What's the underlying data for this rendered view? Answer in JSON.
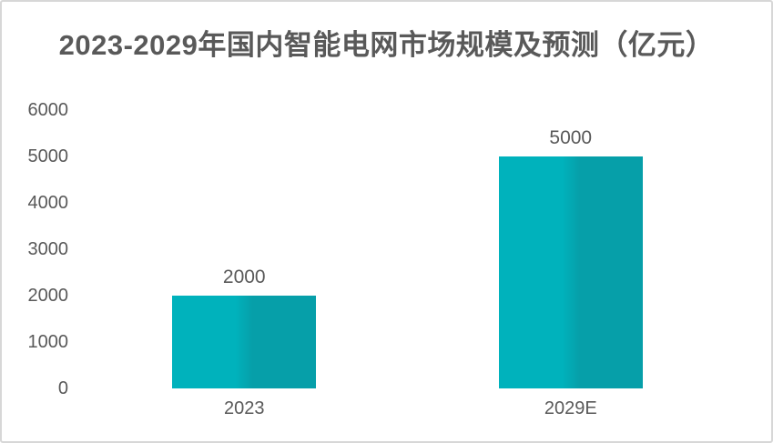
{
  "title": "2023-2029年国内智能电网市场规模及预测（亿元）",
  "colors": {
    "title_text": "#595959",
    "axis_text": "#595959",
    "bar_left": "#00b2bc",
    "bar_right": "#069fa9",
    "card_border": "#d7d7d7",
    "background": "#ffffff"
  },
  "chart_data": {
    "type": "bar",
    "title": "2023-2029年国内智能电网市场规模及预测（亿元）",
    "unit": "亿元",
    "categories": [
      "2023",
      "2029E"
    ],
    "values": [
      2000,
      5000
    ],
    "data_labels": [
      "2000",
      "5000"
    ],
    "xlabel": "",
    "ylabel": "",
    "ylim": [
      0,
      6000
    ],
    "ytick_interval": 1000,
    "yticks": [
      0,
      1000,
      2000,
      3000,
      4000,
      5000,
      6000
    ],
    "grid": false,
    "legend": false,
    "axis_lines": false
  }
}
